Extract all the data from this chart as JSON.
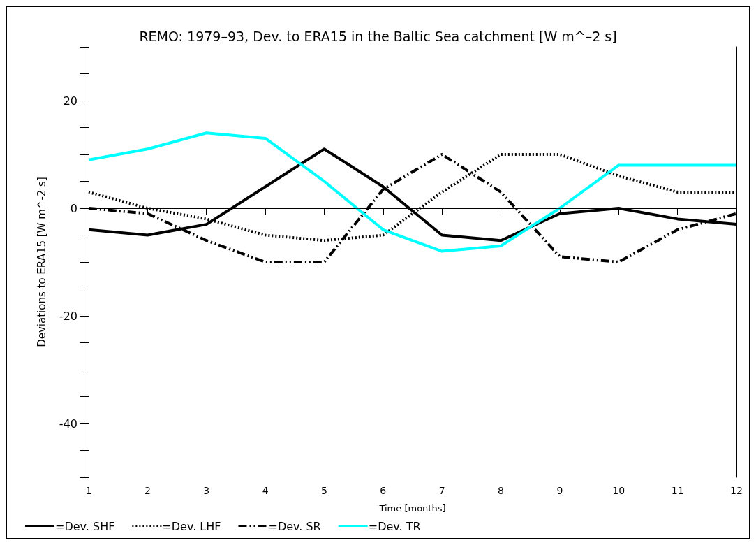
{
  "chart_data": {
    "type": "line",
    "title": "REMO: 1979–93, Dev. to ERA15 in the Baltic Sea catchment [W m^–2 s]",
    "xlabel": "Time [months]",
    "ylabel": "Deviations to ERA15 [W m^-2 s]",
    "x": [
      1,
      2,
      3,
      4,
      5,
      6,
      7,
      8,
      9,
      10,
      11,
      12
    ],
    "series": [
      {
        "name": "=Dev. SHF",
        "color": "#000000",
        "line_style": "solid",
        "values": [
          -4,
          -5,
          -3,
          4,
          11,
          4,
          -5,
          -6,
          -1,
          0,
          -2,
          -3
        ]
      },
      {
        "name": "=Dev. LHF",
        "color": "#000000",
        "line_style": "dotted",
        "values": [
          3,
          0,
          -2,
          -5,
          -6,
          -5,
          3,
          10,
          10,
          6,
          3,
          3
        ]
      },
      {
        "name": "=Dev. SR",
        "color": "#000000",
        "line_style": "dashed",
        "values": [
          0,
          -1,
          -6,
          -10,
          -10,
          3.5,
          10,
          3,
          -9,
          -10,
          -4,
          -1
        ]
      },
      {
        "name": "=Dev. TR",
        "color": "#00ffff",
        "line_style": "solid",
        "values": [
          9,
          11,
          14,
          13,
          5,
          -4,
          -8,
          -7,
          0,
          8,
          8,
          8
        ]
      }
    ],
    "xlim": [
      1,
      12
    ],
    "xticks": [
      1,
      2,
      3,
      4,
      5,
      6,
      7,
      8,
      9,
      10,
      11,
      12
    ],
    "ylim": [
      -50,
      30
    ],
    "yticks": [
      {
        "value": -50,
        "label": null
      },
      {
        "value": -45,
        "label": null
      },
      -40,
      {
        "value": -35,
        "label": null
      },
      {
        "value": -30,
        "label": null
      },
      {
        "value": -25,
        "label": null
      },
      -20,
      {
        "value": -15,
        "label": null
      },
      {
        "value": -10,
        "label": null
      },
      {
        "value": -5,
        "label": null
      },
      0,
      {
        "value": 5,
        "label": null
      },
      {
        "value": 10,
        "label": null
      },
      {
        "value": 15,
        "label": null
      },
      20,
      {
        "value": 25,
        "label": null
      },
      {
        "value": 30,
        "label": null
      }
    ],
    "ref_lines": [
      {
        "axis": "y",
        "value": 0,
        "label": null,
        "color": "#000000"
      }
    ],
    "grid": false,
    "legend": "bottom left",
    "marker": "none"
  }
}
